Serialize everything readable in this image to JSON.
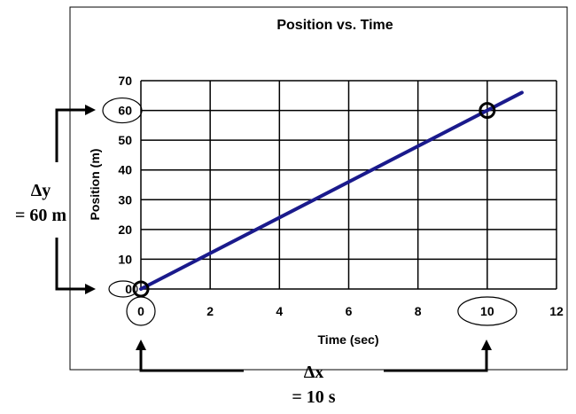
{
  "chart_data": {
    "type": "line",
    "title": "Position vs. Time",
    "xlabel": "Time (sec)",
    "ylabel": "Position (m)",
    "xlim": [
      0,
      12
    ],
    "ylim": [
      0,
      70
    ],
    "x_ticks": [
      "0",
      "2",
      "4",
      "6",
      "8",
      "10",
      "12"
    ],
    "y_ticks": [
      "0",
      "10",
      "20",
      "30",
      "40",
      "50",
      "60",
      "70"
    ],
    "grid": true,
    "series": [
      {
        "x": [
          0,
          11
        ],
        "y": [
          0,
          66
        ],
        "color": "#1a1a8c"
      }
    ],
    "highlighted_points": [
      {
        "x": 0,
        "y": 0
      },
      {
        "x": 10,
        "y": 60
      }
    ],
    "annotations": {
      "delta_y_symbol": "Δy",
      "delta_y_value": "= 60 m",
      "delta_x_symbol": "Δx",
      "delta_x_value": "= 10 s"
    }
  }
}
